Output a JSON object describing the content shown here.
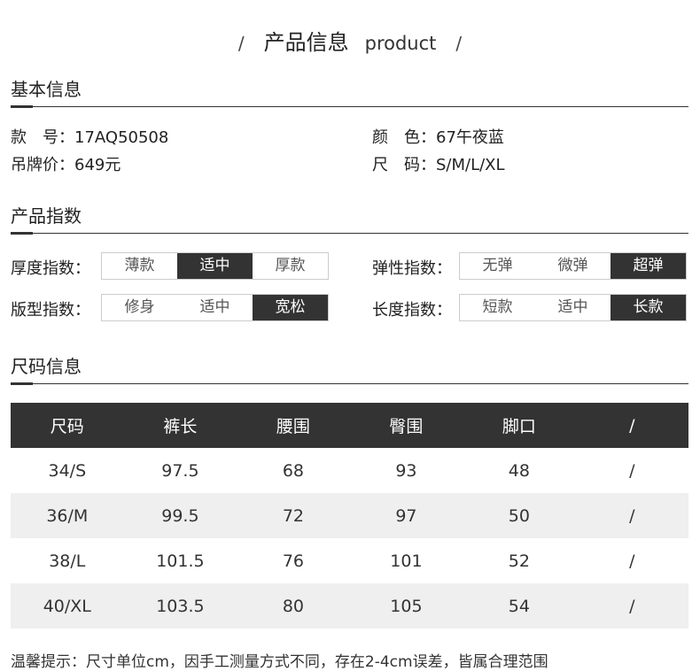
{
  "header": {
    "slash": "/",
    "title": "产品信息",
    "subtitle": "product"
  },
  "basic": {
    "title": "基本信息",
    "items": [
      {
        "label": "款　号：",
        "value": "17AQ50508"
      },
      {
        "label": "颜　色：",
        "value": "67午夜蓝"
      },
      {
        "label": "吊牌价：",
        "value": "649元"
      },
      {
        "label": "尺　码：",
        "value": "S/M/L/XL"
      }
    ]
  },
  "index": {
    "title": "产品指数",
    "rows": [
      {
        "label": "厚度指数：",
        "options": [
          "薄款",
          "适中",
          "厚款"
        ],
        "selected": 1
      },
      {
        "label": "弹性指数：",
        "options": [
          "无弹",
          "微弹",
          "超弹"
        ],
        "selected": 2
      },
      {
        "label": "版型指数：",
        "options": [
          "修身",
          "适中",
          "宽松"
        ],
        "selected": 2
      },
      {
        "label": "长度指数：",
        "options": [
          "短款",
          "适中",
          "长款"
        ],
        "selected": 2
      }
    ]
  },
  "size": {
    "title": "尺码信息",
    "headers": [
      "尺码",
      "裤长",
      "腰围",
      "臀围",
      "脚口",
      "/"
    ],
    "rows": [
      [
        "34/S",
        "97.5",
        "68",
        "93",
        "48",
        "/"
      ],
      [
        "36/M",
        "99.5",
        "72",
        "97",
        "50",
        "/"
      ],
      [
        "38/L",
        "101.5",
        "76",
        "101",
        "52",
        "/"
      ],
      [
        "40/XL",
        "103.5",
        "80",
        "105",
        "54",
        "/"
      ]
    ]
  },
  "note": "温馨提示：尺寸单位cm，因手工测量方式不同，存在2-4cm误差，皆属合理范围",
  "colors": {
    "dark": "#333333",
    "stripe": "#efefef"
  }
}
